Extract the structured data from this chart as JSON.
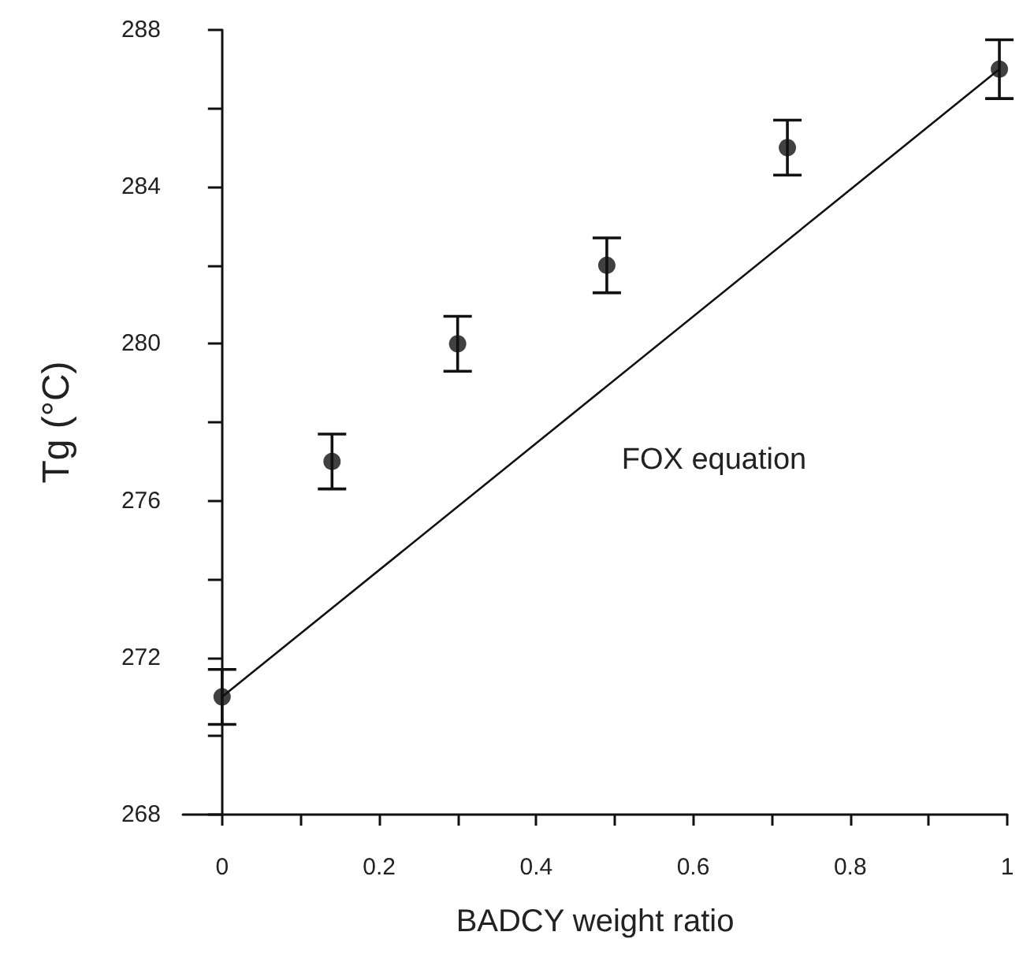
{
  "chart_data": {
    "type": "scatter",
    "xlabel": "BADCY weight ratio",
    "ylabel": "Tg (°C)",
    "xlim": [
      -0.05,
      1
    ],
    "xticks": [
      0,
      {
        "value": 0.1,
        "label": null
      },
      0.2,
      {
        "value": 0.3,
        "label": null
      },
      0.4,
      {
        "value": 0.5,
        "label": null
      },
      0.6,
      {
        "value": 0.7,
        "label": null
      },
      0.8,
      {
        "value": 0.9,
        "label": null
      },
      1
    ],
    "ylim": [
      268,
      288
    ],
    "yticks": [
      268,
      {
        "value": 270,
        "label": null
      },
      272,
      {
        "value": 274,
        "label": null
      },
      276,
      {
        "value": 278,
        "label": null
      },
      280,
      {
        "value": 282,
        "label": null
      },
      284,
      {
        "value": 286,
        "label": null
      },
      288
    ],
    "grid": false,
    "marker": "circle",
    "series": [
      {
        "color": "#111111",
        "x": [
          0,
          0.14,
          0.3,
          0.49,
          0.72,
          0.99
        ],
        "values": [
          271,
          277,
          280,
          282,
          285,
          287
        ],
        "errors": [
          0.7,
          0.7,
          0.7,
          0.7,
          0.7,
          0.75
        ]
      },
      {
        "type": "line",
        "color": "#111111",
        "marker": "none",
        "line_style": "solid",
        "x": [
          0,
          0.99
        ],
        "values": [
          271,
          287
        ]
      }
    ],
    "annotations": [
      "FOX equation"
    ]
  }
}
